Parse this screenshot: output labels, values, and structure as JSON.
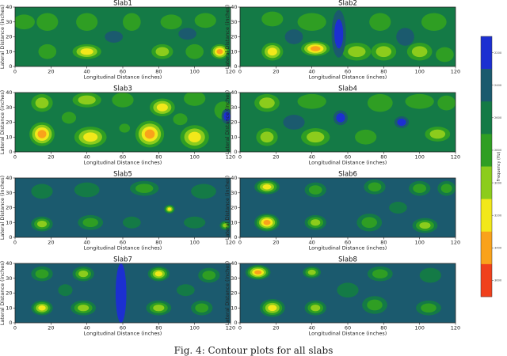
{
  "caption": "Fig. 4: Contour plots for all slabs",
  "colorbar": {
    "label": "Frequency (Hz)",
    "levels": [
      {
        "value": 2200,
        "label": "2200",
        "color": "#1c2fd1"
      },
      {
        "value": 2400,
        "label": "2400",
        "color": "#1b5a6e"
      },
      {
        "value": 2600,
        "label": "2600",
        "color": "#147a46"
      },
      {
        "value": 2800,
        "label": "2800",
        "color": "#2f9e23"
      },
      {
        "value": 3000,
        "label": "3000",
        "color": "#8ccc1c"
      },
      {
        "value": 3200,
        "label": "3200",
        "color": "#f2e81a"
      },
      {
        "value": 3400,
        "label": "3400",
        "color": "#f9a21b"
      },
      {
        "value": 3600,
        "label": "3600",
        "color": "#f0401c"
      }
    ]
  },
  "axis_text": {
    "xlabel": "Longitudinal Distance (inches)",
    "ylabel": "Lateral Distance (inches)"
  },
  "chart_data": [
    {
      "type": "heatmap",
      "title": "Slab1",
      "xlim": [
        0,
        120
      ],
      "ylim": [
        0,
        40
      ],
      "xticks": [
        0,
        20,
        40,
        60,
        80,
        100,
        120
      ],
      "yticks": [
        0,
        10,
        20,
        30,
        40
      ],
      "background": 2,
      "hotspots": [
        [
          5,
          30,
          6,
          5,
          3
        ],
        [
          18,
          30,
          6,
          6,
          3
        ],
        [
          40,
          30,
          6,
          6,
          3
        ],
        [
          65,
          30,
          5,
          6,
          3
        ],
        [
          87,
          30,
          6,
          5,
          3
        ],
        [
          106,
          31,
          6,
          5,
          3
        ],
        [
          18,
          10,
          5,
          5,
          3
        ],
        [
          40,
          10,
          8,
          5,
          5
        ],
        [
          82,
          10,
          6,
          5,
          4
        ],
        [
          100,
          10,
          5,
          5,
          3
        ],
        [
          114,
          10,
          5,
          5,
          6
        ],
        [
          55,
          20,
          5,
          4,
          1
        ],
        [
          96,
          22,
          5,
          4,
          1
        ]
      ]
    },
    {
      "type": "heatmap",
      "title": "Slab2",
      "xlim": [
        0,
        120
      ],
      "ylim": [
        0,
        40
      ],
      "xticks": [
        0,
        20,
        40,
        60,
        80,
        100,
        120
      ],
      "yticks": [
        0,
        10,
        20,
        30,
        40
      ],
      "background": 2,
      "hotspots": [
        [
          40,
          30,
          8,
          6,
          3
        ],
        [
          78,
          30,
          6,
          6,
          3
        ],
        [
          108,
          30,
          7,
          6,
          3
        ],
        [
          18,
          32,
          6,
          5,
          3
        ],
        [
          18,
          10,
          6,
          6,
          5
        ],
        [
          42,
          12,
          8,
          5,
          6
        ],
        [
          65,
          10,
          8,
          6,
          4
        ],
        [
          80,
          10,
          7,
          6,
          4
        ],
        [
          100,
          10,
          7,
          6,
          4
        ],
        [
          114,
          8,
          5,
          5,
          3
        ],
        [
          55,
          22,
          4,
          16,
          0
        ],
        [
          30,
          20,
          5,
          5,
          1
        ],
        [
          92,
          20,
          5,
          6,
          1
        ]
      ]
    },
    {
      "type": "heatmap",
      "title": "Slab3",
      "xlim": [
        0,
        120
      ],
      "ylim": [
        0,
        40
      ],
      "xticks": [
        0,
        20,
        40,
        60,
        80,
        100,
        120
      ],
      "yticks": [
        0,
        10,
        20,
        30,
        40
      ],
      "background": 2,
      "hotspots": [
        [
          15,
          33,
          6,
          6,
          4
        ],
        [
          40,
          35,
          8,
          5,
          4
        ],
        [
          60,
          35,
          6,
          5,
          3
        ],
        [
          82,
          30,
          7,
          6,
          5
        ],
        [
          100,
          36,
          6,
          5,
          3
        ],
        [
          116,
          28,
          5,
          6,
          3
        ],
        [
          15,
          12,
          7,
          8,
          6
        ],
        [
          42,
          10,
          9,
          7,
          5
        ],
        [
          75,
          12,
          8,
          9,
          6
        ],
        [
          100,
          10,
          8,
          8,
          5
        ],
        [
          30,
          23,
          4,
          4,
          3
        ],
        [
          61,
          16,
          3,
          3,
          3
        ],
        [
          92,
          22,
          4,
          4,
          3
        ],
        [
          118,
          24,
          3,
          5,
          0
        ]
      ]
    },
    {
      "type": "heatmap",
      "title": "Slab4",
      "xlim": [
        0,
        120
      ],
      "ylim": [
        0,
        40
      ],
      "xticks": [
        0,
        20,
        40,
        60,
        80,
        100,
        120
      ],
      "yticks": [
        0,
        10,
        20,
        30,
        40
      ],
      "background": 2,
      "hotspots": [
        [
          15,
          33,
          7,
          6,
          4
        ],
        [
          40,
          34,
          8,
          5,
          3
        ],
        [
          78,
          33,
          7,
          6,
          3
        ],
        [
          100,
          34,
          8,
          5,
          3
        ],
        [
          115,
          33,
          5,
          5,
          3
        ],
        [
          15,
          10,
          6,
          6,
          4
        ],
        [
          42,
          10,
          8,
          6,
          4
        ],
        [
          70,
          10,
          6,
          5,
          3
        ],
        [
          110,
          12,
          7,
          5,
          4
        ],
        [
          56,
          23,
          4,
          5,
          0
        ],
        [
          90,
          20,
          4,
          4,
          0
        ],
        [
          30,
          20,
          6,
          5,
          1
        ]
      ]
    },
    {
      "type": "heatmap",
      "title": "Slab5",
      "xlim": [
        0,
        120
      ],
      "ylim": [
        0,
        40
      ],
      "xticks": [
        0,
        20,
        40,
        60,
        80,
        100,
        120
      ],
      "yticks": [
        0,
        10,
        20,
        30,
        40
      ],
      "background": 1,
      "hotspots": [
        [
          15,
          31,
          6,
          5,
          2
        ],
        [
          40,
          32,
          7,
          5,
          2
        ],
        [
          72,
          33,
          8,
          5,
          3
        ],
        [
          105,
          31,
          7,
          5,
          2
        ],
        [
          15,
          9,
          6,
          5,
          4
        ],
        [
          42,
          10,
          7,
          5,
          3
        ],
        [
          86,
          19,
          3,
          3,
          5
        ],
        [
          117,
          8,
          3,
          3,
          4
        ],
        [
          100,
          10,
          6,
          4,
          2
        ],
        [
          65,
          10,
          5,
          4,
          2
        ]
      ]
    },
    {
      "type": "heatmap",
      "title": "Slab6",
      "xlim": [
        0,
        120
      ],
      "ylim": [
        0,
        40
      ],
      "xticks": [
        0,
        20,
        40,
        60,
        80,
        100,
        120
      ],
      "yticks": [
        0,
        10,
        20,
        30,
        40
      ],
      "background": 1,
      "hotspots": [
        [
          15,
          34,
          7,
          5,
          5
        ],
        [
          42,
          32,
          6,
          5,
          3
        ],
        [
          75,
          34,
          6,
          5,
          3
        ],
        [
          100,
          33,
          6,
          5,
          3
        ],
        [
          115,
          33,
          5,
          5,
          3
        ],
        [
          15,
          10,
          7,
          6,
          6
        ],
        [
          42,
          10,
          6,
          5,
          4
        ],
        [
          72,
          10,
          7,
          6,
          3
        ],
        [
          103,
          8,
          7,
          5,
          4
        ],
        [
          88,
          20,
          5,
          4,
          2
        ]
      ]
    },
    {
      "type": "heatmap",
      "title": "Slab7",
      "xlim": [
        0,
        120
      ],
      "ylim": [
        0,
        40
      ],
      "xticks": [
        0,
        20,
        40,
        60,
        80,
        100,
        120
      ],
      "yticks": [
        0,
        10,
        20,
        30,
        40
      ],
      "background": 1,
      "hotspots": [
        [
          15,
          33,
          6,
          5,
          3
        ],
        [
          38,
          33,
          6,
          5,
          4
        ],
        [
          80,
          33,
          6,
          5,
          5
        ],
        [
          108,
          32,
          6,
          5,
          3
        ],
        [
          15,
          10,
          6,
          5,
          5
        ],
        [
          38,
          10,
          7,
          5,
          4
        ],
        [
          80,
          10,
          7,
          5,
          4
        ],
        [
          104,
          10,
          6,
          5,
          3
        ],
        [
          59,
          20,
          3,
          20,
          0
        ],
        [
          95,
          22,
          5,
          4,
          2
        ],
        [
          28,
          22,
          4,
          4,
          2
        ]
      ]
    },
    {
      "type": "heatmap",
      "title": "Slab8",
      "xlim": [
        0,
        120
      ],
      "ylim": [
        0,
        40
      ],
      "xticks": [
        0,
        20,
        40,
        60,
        80,
        100,
        120
      ],
      "yticks": [
        0,
        10,
        20,
        30,
        40
      ],
      "background": 1,
      "hotspots": [
        [
          10,
          34,
          7,
          5,
          6
        ],
        [
          40,
          34,
          5,
          4,
          4
        ],
        [
          78,
          33,
          7,
          5,
          3
        ],
        [
          106,
          32,
          6,
          5,
          2
        ],
        [
          18,
          10,
          7,
          6,
          5
        ],
        [
          42,
          10,
          6,
          5,
          4
        ],
        [
          75,
          12,
          7,
          6,
          3
        ],
        [
          105,
          10,
          7,
          5,
          3
        ],
        [
          60,
          22,
          6,
          5,
          2
        ]
      ]
    }
  ]
}
